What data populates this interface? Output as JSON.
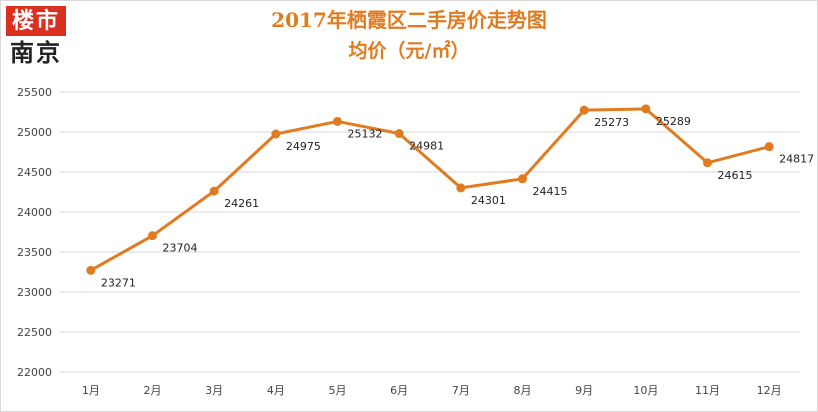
{
  "logo": {
    "line1": "楼市",
    "line2": "南京"
  },
  "chart_data": {
    "type": "line",
    "title": "2017年栖霞区二手房价走势图",
    "subtitle": "均价（元/㎡）",
    "categories": [
      "1月",
      "2月",
      "3月",
      "4月",
      "5月",
      "6月",
      "7月",
      "8月",
      "9月",
      "10月",
      "11月",
      "12月"
    ],
    "series": [
      {
        "values": [
          23271,
          23704,
          24261,
          24975,
          25132,
          24981,
          24301,
          24415,
          25273,
          25289,
          24615,
          24817
        ]
      }
    ],
    "ylim": [
      22000,
      25500
    ],
    "yticks": [
      22000,
      22500,
      23000,
      23500,
      24000,
      24500,
      25000,
      25500
    ],
    "grid": true,
    "data_labels": true,
    "line_color": "#e07b1f",
    "gridline_color": "#d9d9d9"
  }
}
